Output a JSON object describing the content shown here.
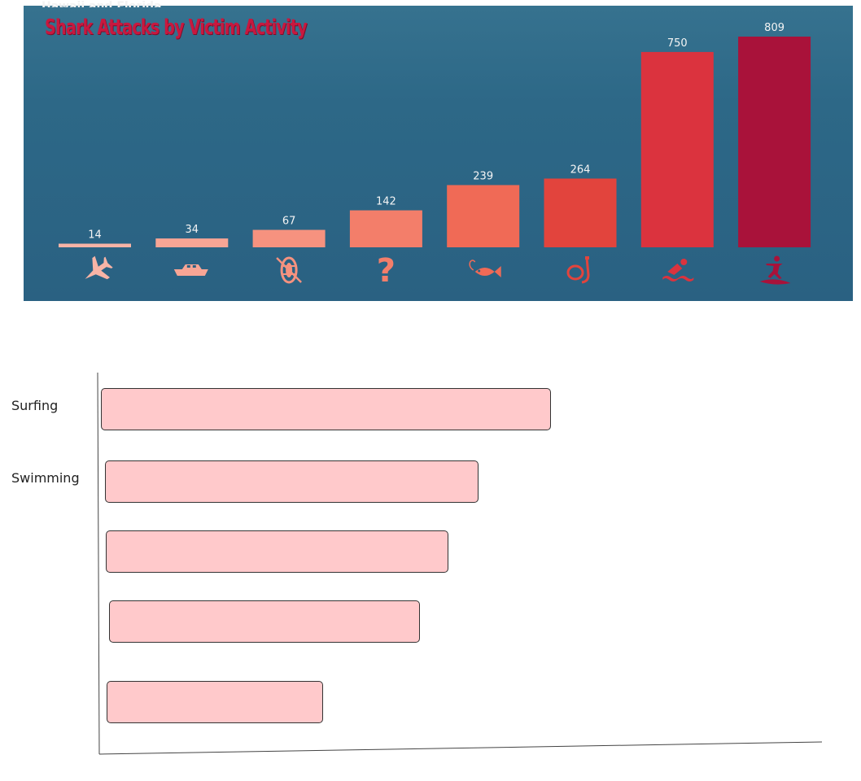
{
  "panel": {
    "subtitle": "Hawaii and Florida",
    "title": "Shark Attacks by Victim Activity",
    "colors": {
      "bg": "#2d6887",
      "title": "#c8183f"
    }
  },
  "chart_data": [
    {
      "type": "bar",
      "title": "Shark Attacks by Victim Activity",
      "categories": [
        "airplane-icon",
        "boat-icon",
        "rafting-icon",
        "unknown-icon",
        "fishing-icon",
        "snorkeling-icon",
        "swimming-icon",
        "surfing-icon"
      ],
      "values": [
        14,
        34,
        67,
        142,
        239,
        264,
        750,
        809
      ],
      "colors": [
        "#f8b4a6",
        "#f7a595",
        "#f6927f",
        "#f37e6a",
        "#f06a56",
        "#e2443d",
        "#db333e",
        "#a9123a"
      ],
      "ylim": [
        0,
        809
      ]
    },
    {
      "type": "bar",
      "orientation": "horizontal",
      "categories": [
        "Surfing",
        "Swimming",
        "",
        "",
        ""
      ],
      "values": [
        100,
        83,
        76,
        69,
        48
      ],
      "bar_color": "#ffc9cb"
    }
  ]
}
